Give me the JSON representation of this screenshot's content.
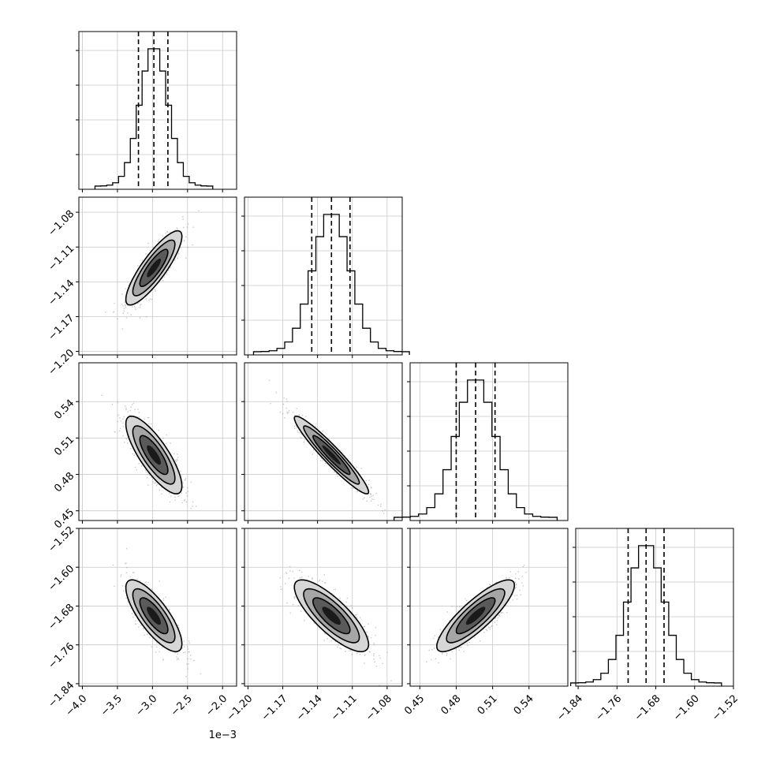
{
  "chart_data": {
    "type": "corner",
    "parameters": [
      {
        "ticks": [
          -4.0,
          -3.5,
          -3.0,
          -2.5,
          -2.0
        ],
        "tick_labels": [
          "−4.0",
          "−3.5",
          "−3.0",
          "−2.5",
          "−2.0"
        ],
        "range": [
          -4.05,
          -1.8
        ],
        "offset_text": "1e−3",
        "quantiles": [
          -3.2,
          -2.98,
          -2.78
        ],
        "center": -2.98,
        "sigma": 0.2
      },
      {
        "ticks": [
          -1.2,
          -1.17,
          -1.14,
          -1.11,
          -1.08
        ],
        "tick_labels": [
          "−1.20",
          "−1.17",
          "−1.14",
          "−1.11",
          "−1.08"
        ],
        "range": [
          -1.203,
          -1.067
        ],
        "quantiles": [
          -1.145,
          -1.128,
          -1.112
        ],
        "center": -1.128,
        "sigma": 0.016
      },
      {
        "ticks": [
          0.45,
          0.48,
          0.51,
          0.54
        ],
        "tick_labels": [
          "0.45",
          "0.48",
          "0.51",
          "0.54"
        ],
        "range": [
          0.442,
          0.572
        ],
        "quantiles": [
          0.48,
          0.496,
          0.512
        ],
        "center": 0.496,
        "sigma": 0.016
      },
      {
        "ticks": [
          -1.84,
          -1.76,
          -1.68,
          -1.6,
          -1.52
        ],
        "tick_labels": [
          "−1.84",
          "−1.76",
          "−1.68",
          "−1.60",
          "−1.52"
        ],
        "range": [
          -1.845,
          -1.52
        ],
        "quantiles": [
          -1.737,
          -1.7,
          -1.663
        ],
        "center": -1.7,
        "sigma": 0.037
      }
    ],
    "correlations": [
      {
        "pair": [
          0,
          1
        ],
        "rho": 0.85
      },
      {
        "pair": [
          0,
          2
        ],
        "rho": -0.8
      },
      {
        "pair": [
          1,
          2
        ],
        "rho": -0.95
      },
      {
        "pair": [
          0,
          3
        ],
        "rho": -0.78
      },
      {
        "pair": [
          1,
          3
        ],
        "rho": -0.8
      },
      {
        "pair": [
          2,
          3
        ],
        "rho": 0.85
      }
    ],
    "histogram_bins": 20,
    "contour_levels_sigma": [
      1,
      1.5,
      2
    ],
    "grid": true,
    "title": "",
    "legend": "none"
  }
}
